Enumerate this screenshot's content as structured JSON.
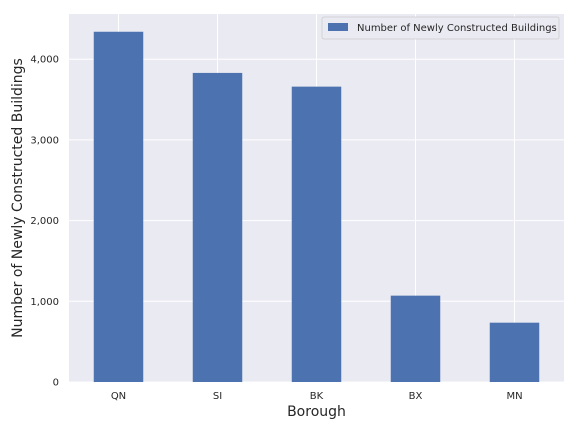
{
  "chart_data": {
    "type": "bar",
    "title": "",
    "xlabel": "Borough",
    "ylabel": "Number of Newly Constructed Buildings",
    "categories": [
      "QN",
      "SI",
      "BK",
      "BX",
      "MN"
    ],
    "series": [
      {
        "name": "Number of Newly Constructed Buildings",
        "values": [
          4340,
          3830,
          3660,
          1070,
          735
        ],
        "color": "#4c72b0"
      }
    ],
    "ylim": [
      0,
      4560
    ],
    "yticks": [
      0,
      1000,
      2000,
      3000,
      4000
    ],
    "ytick_labels": [
      "0",
      "1,000",
      "2,000",
      "3,000",
      "4,000"
    ],
    "grid": true,
    "legend_position": "top-right",
    "plot_background": "#eaeaf2",
    "grid_color": "#ffffff"
  }
}
